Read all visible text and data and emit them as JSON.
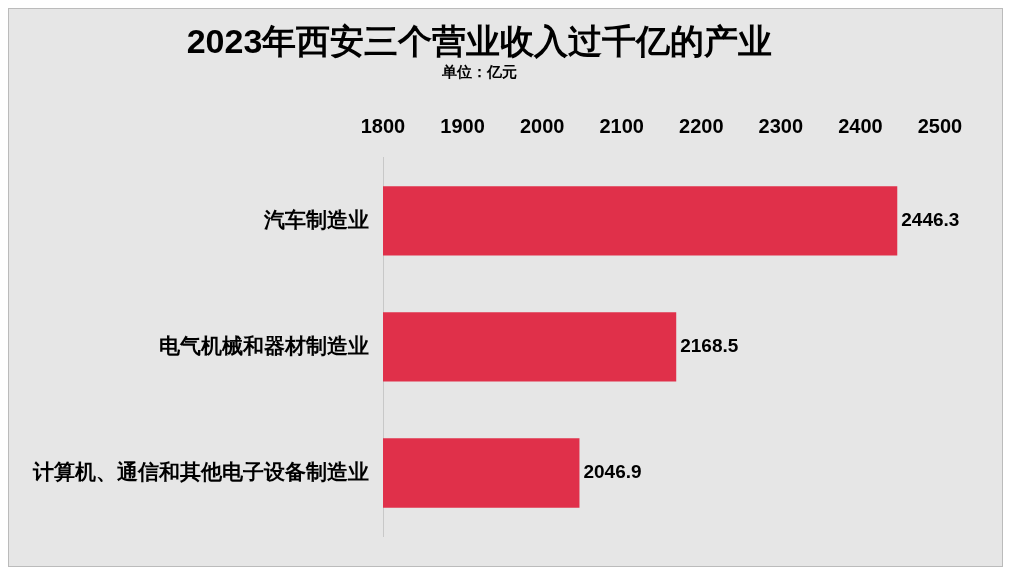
{
  "chart_data": {
    "type": "bar",
    "orientation": "horizontal",
    "title": "2023年西安三个营业收入过千亿的产业",
    "subtitle": "单位：亿元",
    "categories": [
      "汽车制造业",
      "电气机械和器材制造业",
      "计算机、通信和其他电子设备制造业"
    ],
    "values": [
      2446.3,
      2168.5,
      2046.9
    ],
    "color": "#e0304a",
    "xlim": [
      1800,
      2500
    ],
    "xticks": [
      1800,
      1900,
      2000,
      2100,
      2200,
      2300,
      2400,
      2500
    ],
    "grid": false,
    "legend": false,
    "data_labels": true
  }
}
